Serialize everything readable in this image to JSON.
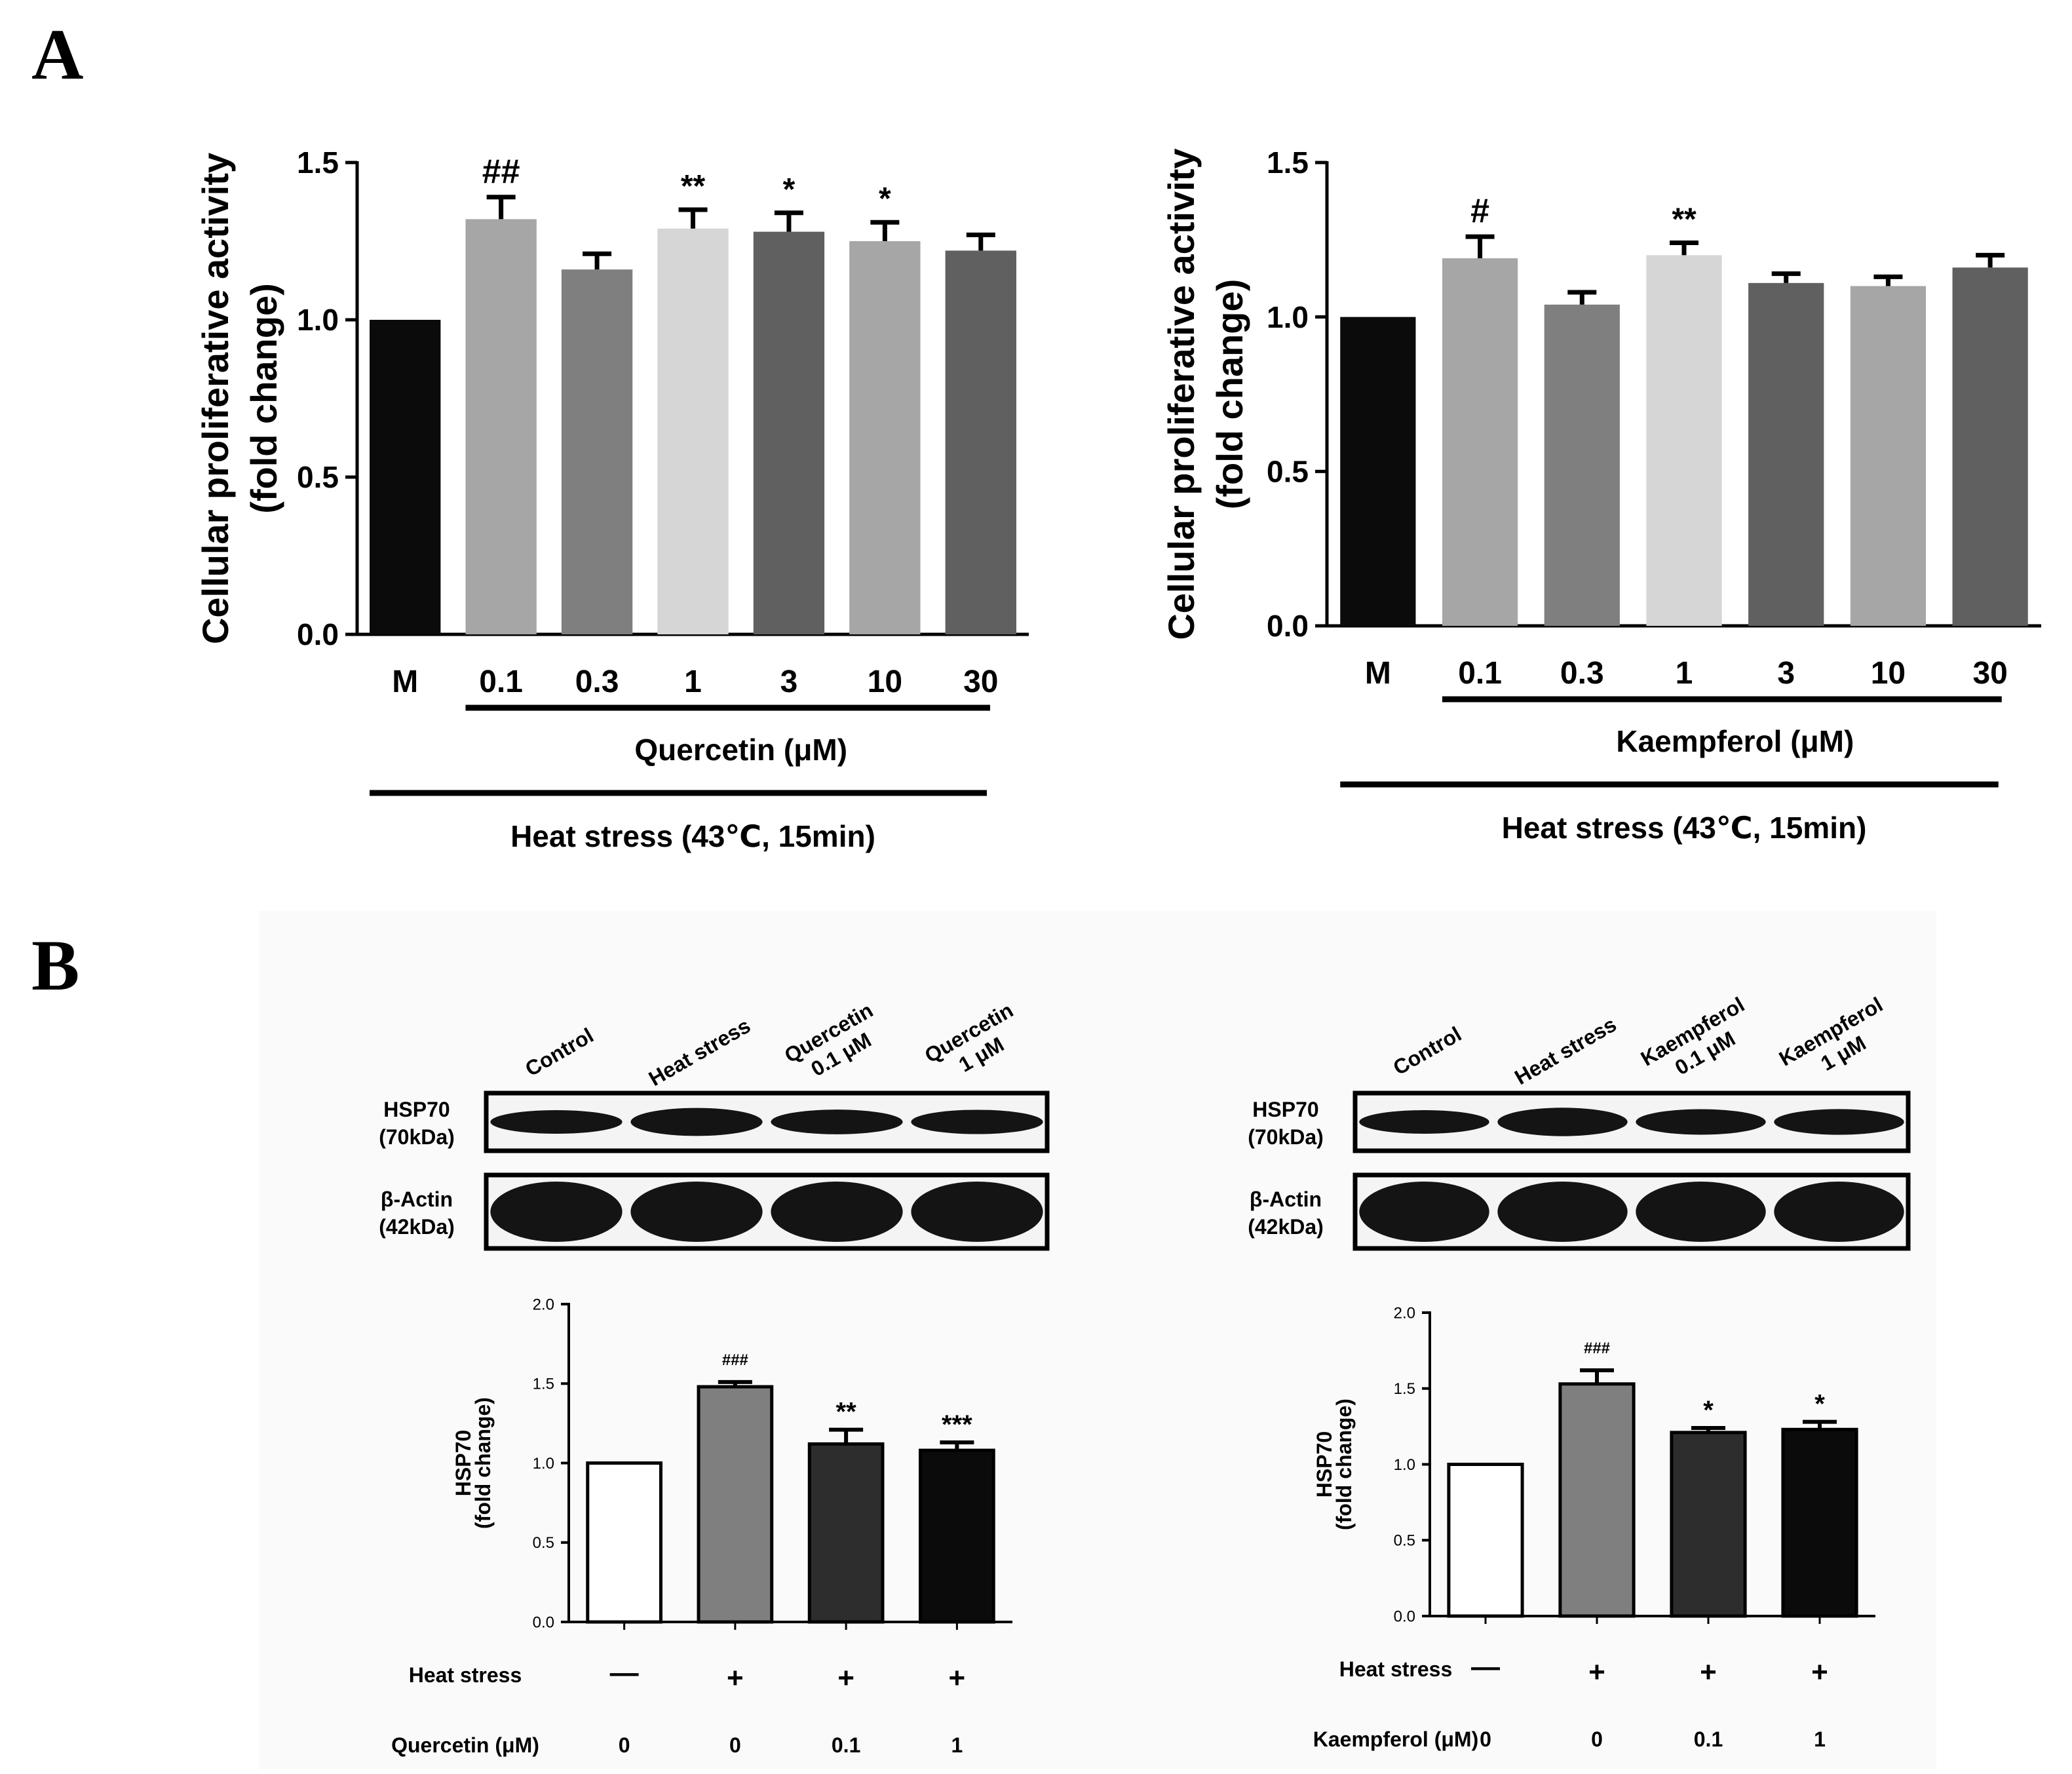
{
  "panel_labels": {
    "a": "A",
    "b": "B"
  },
  "colors": {
    "black": "#0b0b0b",
    "gray_light": "#a6a6a6",
    "gray_mid": "#7f7f7f",
    "gray_pale": "#d6d6d6",
    "gray_dark": "#606060",
    "charcoal": "#2d2d2d",
    "white": "#ffffff"
  },
  "chart_data": [
    {
      "id": "quercetin_proliferation",
      "type": "bar",
      "title": "",
      "ylabel_line1": "Cellular proliferative activity",
      "ylabel_line2": "(fold change)",
      "xlabel": "",
      "ylim": [
        0,
        1.5
      ],
      "yticks": [
        "0.0",
        "0.5",
        "1.0",
        "1.5"
      ],
      "categories": [
        "M",
        "0.1",
        "0.3",
        "1",
        "3",
        "10",
        "30"
      ],
      "values": [
        1.0,
        1.32,
        1.16,
        1.29,
        1.28,
        1.25,
        1.22
      ],
      "errors": [
        0,
        0.07,
        0.05,
        0.06,
        0.06,
        0.06,
        0.05
      ],
      "bar_colors": [
        "#0b0b0b",
        "#a6a6a6",
        "#7f7f7f",
        "#d6d6d6",
        "#606060",
        "#a6a6a6",
        "#606060"
      ],
      "annotations": [
        "",
        "##",
        "",
        "**",
        "*",
        "*",
        ""
      ],
      "group_labels": {
        "treatment": "Quercetin (μM)",
        "stress": "Heat stress (43℃, 15min)"
      }
    },
    {
      "id": "kaempferol_proliferation",
      "type": "bar",
      "title": "",
      "ylabel_line1": "Cellular proliferative activity",
      "ylabel_line2": "(fold change)",
      "xlabel": "",
      "ylim": [
        0,
        1.5
      ],
      "yticks": [
        "0.0",
        "0.5",
        "1.0",
        "1.5"
      ],
      "categories": [
        "M",
        "0.1",
        "0.3",
        "1",
        "3",
        "10",
        "30"
      ],
      "values": [
        1.0,
        1.19,
        1.04,
        1.2,
        1.11,
        1.1,
        1.16
      ],
      "errors": [
        0,
        0.07,
        0.04,
        0.04,
        0.03,
        0.03,
        0.04
      ],
      "bar_colors": [
        "#0b0b0b",
        "#a6a6a6",
        "#7f7f7f",
        "#d6d6d6",
        "#606060",
        "#a6a6a6",
        "#606060"
      ],
      "annotations": [
        "",
        "#",
        "",
        "**",
        "",
        "",
        ""
      ],
      "group_labels": {
        "treatment": "Kaempferol (μM)",
        "stress": "Heat stress (43℃, 15min)"
      }
    },
    {
      "id": "quercetin_hsp70",
      "type": "bar",
      "title": "",
      "ylabel_line1": "HSP70",
      "ylabel_line2": "(fold change)",
      "xlabel": "",
      "ylim": [
        0,
        2.0
      ],
      "yticks": [
        "0.0",
        "0.5",
        "1.0",
        "1.5",
        "2.0"
      ],
      "categories": [
        "Control",
        "Heat stress",
        "Quercetin 0.1 μM",
        "Quercetin 1 μM"
      ],
      "values": [
        1.0,
        1.48,
        1.12,
        1.08
      ],
      "errors": [
        0,
        0.03,
        0.09,
        0.05
      ],
      "bar_colors": [
        "#ffffff",
        "#7f7f7f",
        "#2d2d2d",
        "#0b0b0b"
      ],
      "annotations": [
        "",
        "###",
        "**",
        "***"
      ],
      "lane_labels": [
        [
          "Control"
        ],
        [
          "Heat stress"
        ],
        [
          "Quercetin",
          "0.1 μM"
        ],
        [
          "Quercetin",
          "1 μM"
        ]
      ],
      "blot_rows": [
        [
          "HSP70",
          "(70kDa)"
        ],
        [
          "β-Actin",
          "(42kDa)"
        ]
      ],
      "condition_rows": [
        {
          "label": "Heat stress",
          "values": [
            "—",
            "+",
            "+",
            "+"
          ]
        },
        {
          "label": "Quercetin (μM)",
          "values": [
            "0",
            "0",
            "0.1",
            "1"
          ]
        }
      ]
    },
    {
      "id": "kaempferol_hsp70",
      "type": "bar",
      "title": "",
      "ylabel_line1": "HSP70",
      "ylabel_line2": "(fold change)",
      "xlabel": "",
      "ylim": [
        0,
        2.0
      ],
      "yticks": [
        "0.0",
        "0.5",
        "1.0",
        "1.5",
        "2.0"
      ],
      "categories": [
        "Control",
        "Heat stress",
        "Kaempferol 0.1 μM",
        "Kaempferol 1 μM"
      ],
      "values": [
        1.0,
        1.53,
        1.21,
        1.23
      ],
      "errors": [
        0,
        0.09,
        0.03,
        0.05
      ],
      "bar_colors": [
        "#ffffff",
        "#7f7f7f",
        "#2d2d2d",
        "#0b0b0b"
      ],
      "annotations": [
        "",
        "###",
        "*",
        "*"
      ],
      "lane_labels": [
        [
          "Control"
        ],
        [
          "Heat stress"
        ],
        [
          "Kaempferol",
          "0.1 μM"
        ],
        [
          "Kaempferol",
          "1 μM"
        ]
      ],
      "blot_rows": [
        [
          "HSP70",
          "(70kDa)"
        ],
        [
          "β-Actin",
          "(42kDa)"
        ]
      ],
      "condition_rows": [
        {
          "label": "Heat stress",
          "values": [
            "—",
            "+",
            "+",
            "+"
          ]
        },
        {
          "label": "Kaempferol (μM)",
          "values": [
            "0",
            "0",
            "0.1",
            "1"
          ]
        }
      ]
    }
  ]
}
